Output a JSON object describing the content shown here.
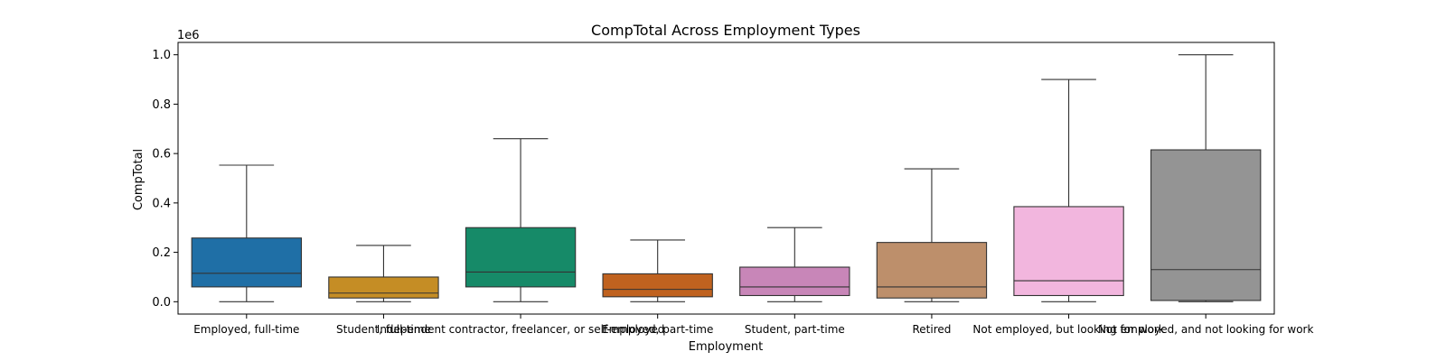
{
  "chart_data": {
    "type": "box",
    "title": "CompTotal Across Employment Types",
    "xlabel": "Employment",
    "ylabel": "CompTotal",
    "y_exponent_label": "1e6",
    "ylim": [
      -0.05,
      1.05
    ],
    "yticks": [
      0.0,
      0.2,
      0.4,
      0.6,
      0.8,
      1.0
    ],
    "ytick_labels": [
      "0.0",
      "0.2",
      "0.4",
      "0.6",
      "0.8",
      "1.0"
    ],
    "categories": [
      "Employed, full-time",
      "Student, full-time",
      "Independent contractor, freelancer, or self-employed",
      "Employed, part-time",
      "Student, part-time",
      "Retired",
      "Not employed, but looking for work",
      "Not employed, and not looking for work"
    ],
    "boxes": [
      {
        "whisker_low": 0.0,
        "q1": 0.06,
        "median": 0.115,
        "q3": 0.258,
        "whisker_high": 0.553,
        "color": "#1f6fa6"
      },
      {
        "whisker_low": 0.0,
        "q1": 0.015,
        "median": 0.035,
        "q3": 0.1,
        "whisker_high": 0.228,
        "color": "#c58d25"
      },
      {
        "whisker_low": 0.0,
        "q1": 0.06,
        "median": 0.12,
        "q3": 0.3,
        "whisker_high": 0.66,
        "color": "#168a68"
      },
      {
        "whisker_low": 0.0,
        "q1": 0.02,
        "median": 0.05,
        "q3": 0.113,
        "whisker_high": 0.25,
        "color": "#c0621f"
      },
      {
        "whisker_low": 0.0,
        "q1": 0.025,
        "median": 0.06,
        "q3": 0.14,
        "whisker_high": 0.3,
        "color": "#c886b8"
      },
      {
        "whisker_low": 0.0,
        "q1": 0.015,
        "median": 0.06,
        "q3": 0.24,
        "whisker_high": 0.538,
        "color": "#bd8f6b"
      },
      {
        "whisker_low": 0.0,
        "q1": 0.025,
        "median": 0.085,
        "q3": 0.385,
        "whisker_high": 0.9,
        "color": "#f2b6de"
      },
      {
        "whisker_low": 0.0,
        "q1": 0.005,
        "median": 0.13,
        "q3": 0.615,
        "whisker_high": 1.0,
        "color": "#949494"
      }
    ]
  }
}
